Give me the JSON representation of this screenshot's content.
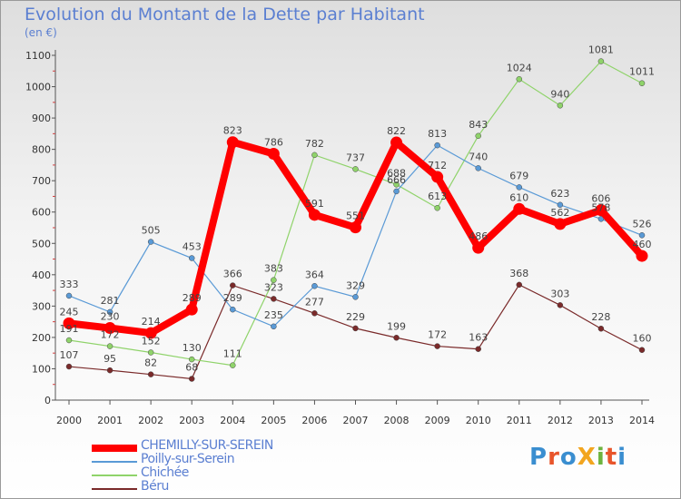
{
  "title": "Evolution du Montant de la Dette par Habitant",
  "subtitle": "(en €)",
  "logo": {
    "text": "ProXiti",
    "colors": [
      "#3a8ed0",
      "#e8552b",
      "#3a8ed0",
      "#f2a51f",
      "#6db33f",
      "#e8552b",
      "#3a8ed0"
    ]
  },
  "chart_data": {
    "type": "line",
    "x": [
      "2000",
      "2001",
      "2002",
      "2003",
      "2004",
      "2005",
      "2006",
      "2007",
      "2008",
      "2009",
      "2010",
      "2011",
      "2012",
      "2013",
      "2014"
    ],
    "ylim": [
      0,
      1100
    ],
    "yticks": [
      0,
      100,
      200,
      300,
      400,
      500,
      600,
      700,
      800,
      900,
      1000,
      1100
    ],
    "grid": false,
    "legend_position": "bottom-left",
    "series": [
      {
        "name": "Béru",
        "color": "#7a2a2a",
        "values": [
          107,
          95,
          82,
          68,
          366,
          323,
          277,
          229,
          199,
          172,
          163,
          368,
          303,
          228,
          160
        ]
      },
      {
        "name": "Chichée",
        "color": "#8fd36a",
        "values": [
          191,
          172,
          152,
          130,
          111,
          383,
          782,
          737,
          688,
          613,
          843,
          1024,
          940,
          1081,
          1011
        ]
      },
      {
        "name": "Poilly-sur-Serein",
        "color": "#5a9ad6",
        "values": [
          333,
          281,
          505,
          453,
          289,
          235,
          364,
          329,
          666,
          813,
          740,
          679,
          623,
          578,
          526
        ]
      },
      {
        "name": "CHEMILLY-SUR-SEREIN",
        "color": "#ff0000",
        "highlight": true,
        "values": [
          245,
          230,
          214,
          289,
          823,
          786,
          591,
          551,
          822,
          712,
          486,
          610,
          562,
          606,
          460
        ]
      }
    ],
    "legend_order": [
      "CHEMILLY-SUR-SEREIN",
      "Poilly-sur-Serein",
      "Chichée",
      "Béru"
    ]
  }
}
